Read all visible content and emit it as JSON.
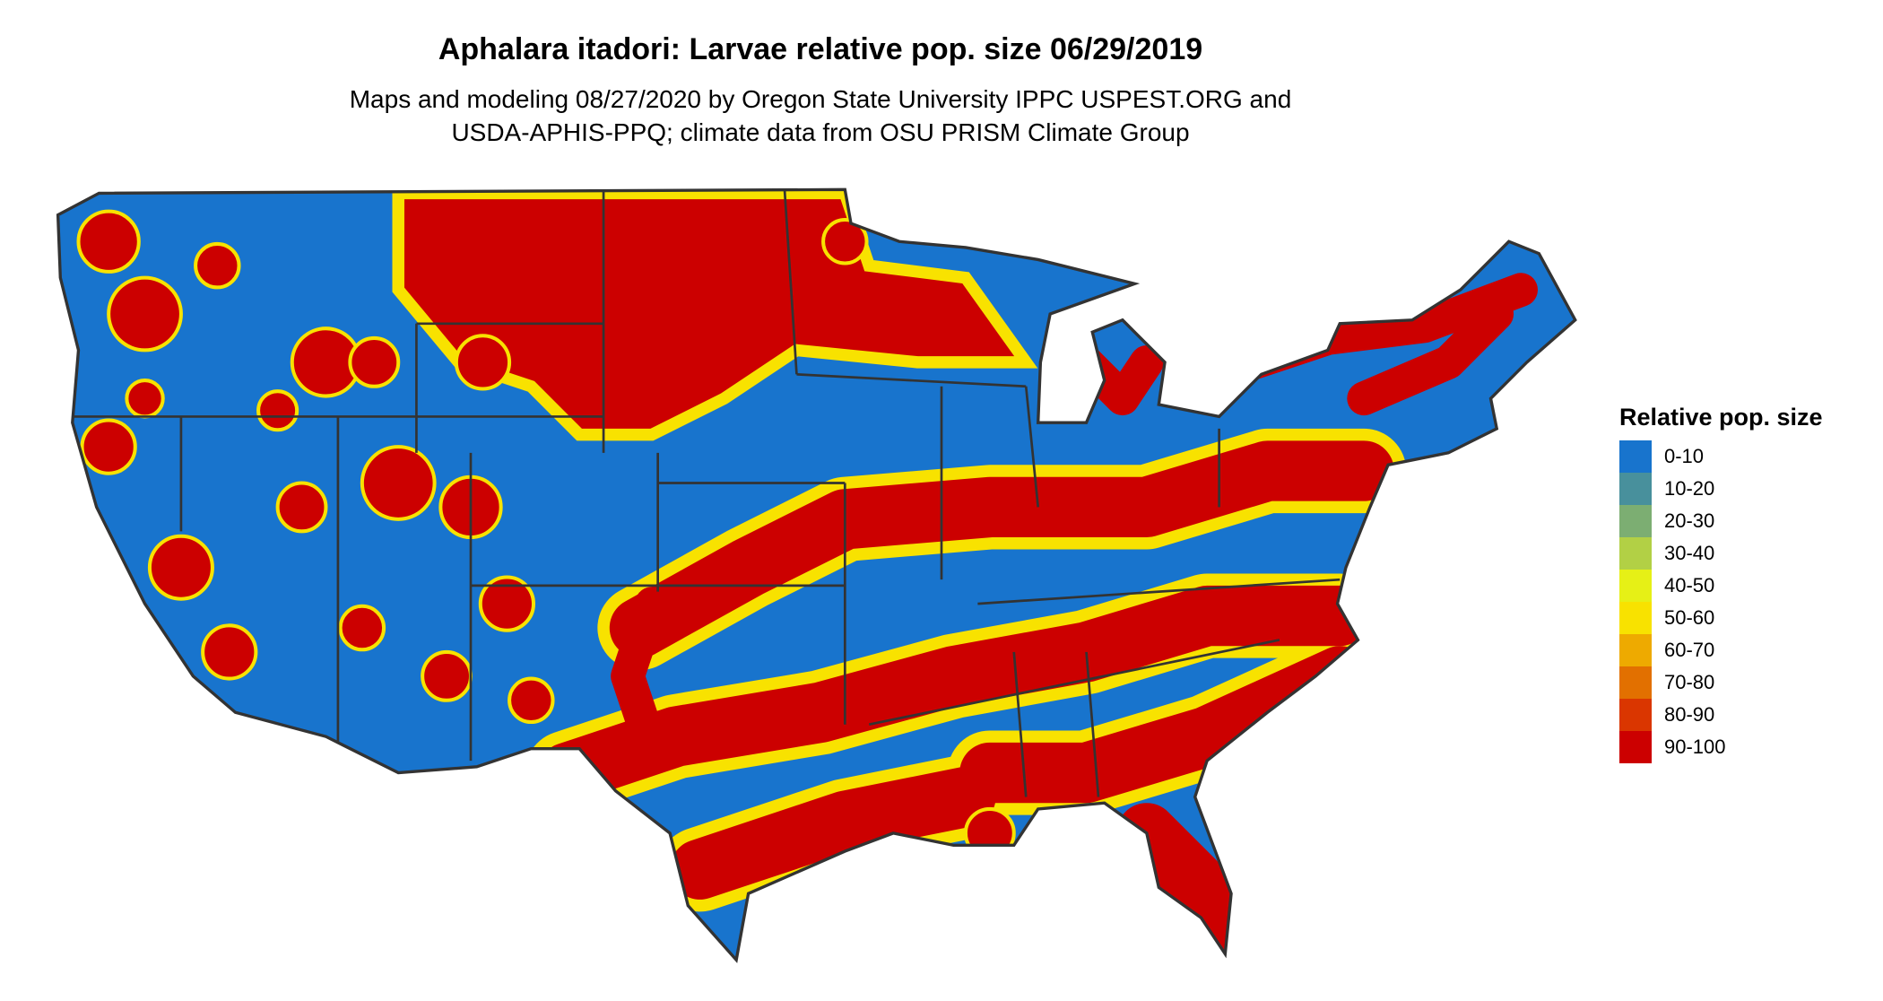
{
  "title": "Aphalara itadori: Larvae relative pop. size 06/29/2019",
  "subtitle_lines": [
    "Maps and modeling 08/27/2020 by Oregon State University IPPC USPEST.ORG and",
    "USDA-APHIS-PPQ; climate data from OSU PRISM Climate Group"
  ],
  "legend": {
    "title": "Relative pop. size",
    "items": [
      {
        "label": "0-10",
        "color": "#1874CD"
      },
      {
        "label": "10-20",
        "color": "#48909C"
      },
      {
        "label": "20-30",
        "color": "#7CAE72"
      },
      {
        "label": "30-40",
        "color": "#B2D045"
      },
      {
        "label": "40-50",
        "color": "#E6F016"
      },
      {
        "label": "50-60",
        "color": "#F8E200"
      },
      {
        "label": "60-70",
        "color": "#EEAA00"
      },
      {
        "label": "70-80",
        "color": "#E27000"
      },
      {
        "label": "80-90",
        "color": "#DA3600"
      },
      {
        "label": "90-100",
        "color": "#CC0000"
      }
    ]
  },
  "map": {
    "region": "Contiguous United States",
    "border_color": "#333333"
  }
}
